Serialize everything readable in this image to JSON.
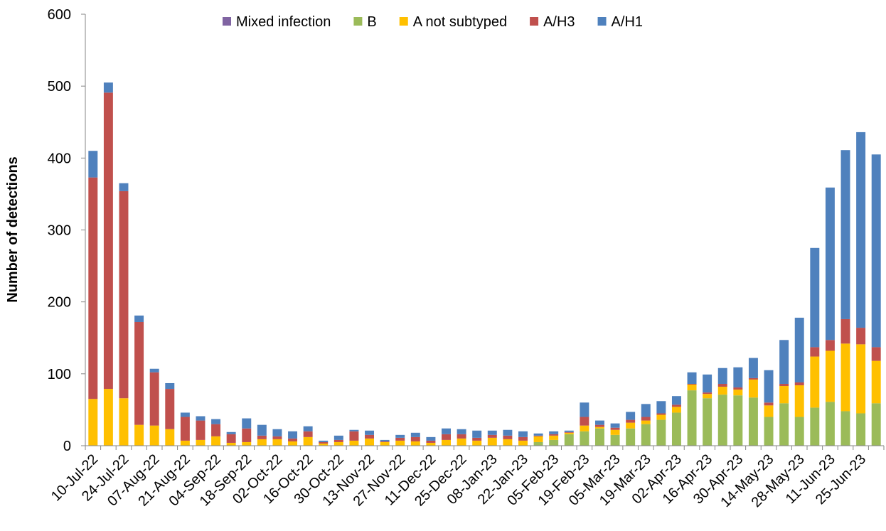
{
  "chart_data": {
    "type": "stacked_bar",
    "y_label": "Number of detections",
    "categories": [
      "10-Jul-22",
      null,
      "24-Jul-22",
      null,
      "07-Aug-22",
      null,
      "21-Aug-22",
      null,
      "04-Sep-22",
      null,
      "18-Sep-22",
      null,
      "02-Oct-22",
      null,
      "16-Oct-22",
      null,
      "30-Oct-22",
      null,
      "13-Nov-22",
      null,
      "27-Nov-22",
      null,
      "11-Dec-22",
      null,
      "25-Dec-22",
      null,
      "08-Jan-23",
      null,
      "22-Jan-23",
      null,
      "05-Feb-23",
      null,
      "19-Feb-23",
      null,
      "05-Mar-23",
      null,
      "19-Mar-23",
      null,
      "02-Apr-23",
      null,
      "16-Apr-23",
      null,
      "30-Apr-23",
      null,
      "14-May-23",
      null,
      "28-May-23",
      null,
      "11-Jun-23",
      null,
      "25-Jun-23",
      null
    ],
    "series": [
      {
        "name": "Mixed infection",
        "color": "#8064a2",
        "values": [
          0,
          0,
          0,
          0,
          0,
          0,
          0,
          0,
          0,
          0,
          0,
          0,
          0,
          0,
          0,
          0,
          0,
          0,
          0,
          0,
          0,
          0,
          0,
          0,
          0,
          0,
          0,
          0,
          0,
          0,
          0,
          0,
          0,
          0,
          0,
          0,
          0,
          0,
          0,
          0,
          0,
          0,
          0,
          0,
          0,
          0,
          0,
          0,
          0,
          0,
          0,
          0
        ]
      },
      {
        "name": "B",
        "color": "#9bbb59",
        "values": [
          0,
          0,
          0,
          0,
          0,
          0,
          0,
          0,
          0,
          0,
          0,
          0,
          0,
          0,
          0,
          0,
          0,
          0,
          0,
          0,
          0,
          0,
          0,
          0,
          0,
          0,
          0,
          0,
          0,
          5,
          8,
          16,
          20,
          24,
          15,
          24,
          30,
          36,
          46,
          77,
          66,
          71,
          70,
          67,
          40,
          59,
          40,
          53,
          61,
          48,
          45,
          59
        ]
      },
      {
        "name": "A not subtyped",
        "color": "#ffc000",
        "values": [
          65,
          79,
          66,
          29,
          28,
          23,
          7,
          8,
          13,
          4,
          5,
          9,
          9,
          6,
          12,
          3,
          5,
          7,
          10,
          5,
          7,
          6,
          4,
          8,
          10,
          7,
          11,
          9,
          7,
          8,
          6,
          2,
          8,
          2,
          7,
          8,
          5,
          7,
          8,
          8,
          6,
          11,
          8,
          25,
          16,
          24,
          44,
          71,
          71,
          94,
          96,
          59
        ]
      },
      {
        "name": "A/H3",
        "color": "#c0504d",
        "values": [
          308,
          412,
          288,
          143,
          74,
          56,
          33,
          27,
          17,
          12,
          19,
          5,
          4,
          4,
          8,
          2,
          3,
          13,
          5,
          1,
          4,
          6,
          3,
          8,
          6,
          4,
          4,
          5,
          5,
          1,
          2,
          1,
          12,
          3,
          3,
          4,
          5,
          2,
          3,
          1,
          2,
          4,
          3,
          2,
          4,
          3,
          4,
          13,
          15,
          34,
          23,
          19
        ]
      },
      {
        "name": "A/H1",
        "color": "#4f81bd",
        "values": [
          37,
          14,
          11,
          9,
          5,
          8,
          6,
          6,
          7,
          3,
          14,
          15,
          10,
          10,
          7,
          2,
          6,
          2,
          6,
          2,
          4,
          6,
          5,
          8,
          7,
          10,
          6,
          8,
          8,
          3,
          4,
          2,
          20,
          6,
          6,
          11,
          18,
          17,
          12,
          16,
          25,
          22,
          28,
          28,
          45,
          61,
          90,
          138,
          212,
          235,
          272,
          268
        ]
      }
    ],
    "ylim": [
      0,
      600
    ],
    "yticks": [
      0,
      100,
      200,
      300,
      400,
      500,
      600
    ],
    "legend": "top"
  }
}
